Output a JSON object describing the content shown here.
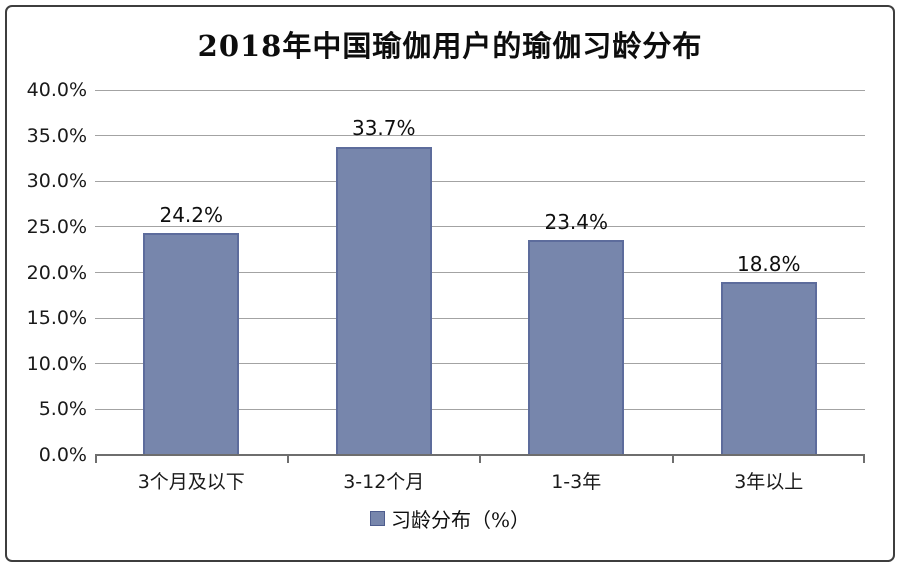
{
  "title": "2018年中国瑜伽用户的瑜伽习龄分布",
  "legend": {
    "label": "习龄分布（%）",
    "marker_color": "#7786ac"
  },
  "colors": {
    "bar_fill": "#7786ac",
    "bar_border": "#5d6c9c",
    "gridline": "#a3a3a3",
    "axis": "#6e6e6e",
    "frame_border": "#3e3e3e",
    "text": "#111111"
  },
  "chart_data": {
    "type": "bar",
    "title": "2018年中国瑜伽用户的瑜伽习龄分布",
    "categories": [
      "3个月及以下",
      "3-12个月",
      "1-3年",
      "3年以上"
    ],
    "values": [
      24.2,
      33.7,
      23.4,
      18.8
    ],
    "value_labels": [
      "24.2%",
      "33.7%",
      "23.4%",
      "18.8%"
    ],
    "series_name": "习龄分布（%）",
    "xlabel": "",
    "ylabel": "",
    "ylim": [
      0,
      40
    ],
    "ytick_step": 5,
    "ytick_labels": [
      "0.0%",
      "5.0%",
      "10.0%",
      "15.0%",
      "20.0%",
      "25.0%",
      "30.0%",
      "35.0%",
      "40.0%"
    ],
    "grid": true,
    "legend_position": "bottom"
  }
}
